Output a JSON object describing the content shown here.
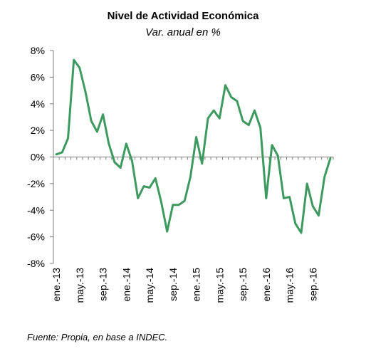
{
  "title": "Nivel de Actividad Económica",
  "subtitle": "Var. anual en %",
  "source": "Fuente: Propia, en base a INDEC.",
  "colors": {
    "line": "#3d9a5f",
    "axis": "#7f7f7f"
  },
  "chart_data": {
    "type": "line",
    "title": "Nivel de Actividad Económica",
    "subtitle": "Var. anual en %",
    "xlabel": "",
    "ylabel": "",
    "ylim": [
      -8,
      8
    ],
    "yticks": [
      8,
      6,
      4,
      2,
      0,
      -2,
      -4,
      -6,
      -8
    ],
    "ytick_labels": [
      "8%",
      "6%",
      "4%",
      "2%",
      "0%",
      "-2%",
      "-4%",
      "-6%",
      "-8%"
    ],
    "xtick_labels": [
      {
        "index": 0,
        "label": "ene.-13"
      },
      {
        "index": 4,
        "label": "may.-13"
      },
      {
        "index": 8,
        "label": "sep.-13"
      },
      {
        "index": 12,
        "label": "ene.-14"
      },
      {
        "index": 16,
        "label": "may.-14"
      },
      {
        "index": 20,
        "label": "sep.-14"
      },
      {
        "index": 24,
        "label": "ene.-15"
      },
      {
        "index": 28,
        "label": "may.-15"
      },
      {
        "index": 32,
        "label": "sep.-15"
      },
      {
        "index": 36,
        "label": "ene.-16"
      },
      {
        "index": 40,
        "label": "may.-16"
      },
      {
        "index": 44,
        "label": "sep.-16"
      }
    ],
    "grid": false,
    "legend": "none",
    "series": [
      {
        "values": [
          0.2,
          0.35,
          1.4,
          7.3,
          6.7,
          4.9,
          2.7,
          1.9,
          3.2,
          1.0,
          -0.4,
          -0.8,
          1.0,
          -0.3,
          -3.1,
          -2.2,
          -2.3,
          -1.6,
          -3.4,
          -5.6,
          -3.6,
          -3.6,
          -3.3,
          -1.5,
          1.5,
          -0.5,
          2.9,
          3.5,
          2.9,
          5.4,
          4.5,
          4.2,
          2.7,
          2.4,
          3.5,
          2.2,
          -3.1,
          0.9,
          0.1,
          -3.1,
          -3.0,
          -5.0,
          -5.7,
          -2.0,
          -3.7,
          -4.4,
          -1.5,
          -0.1
        ]
      }
    ]
  }
}
